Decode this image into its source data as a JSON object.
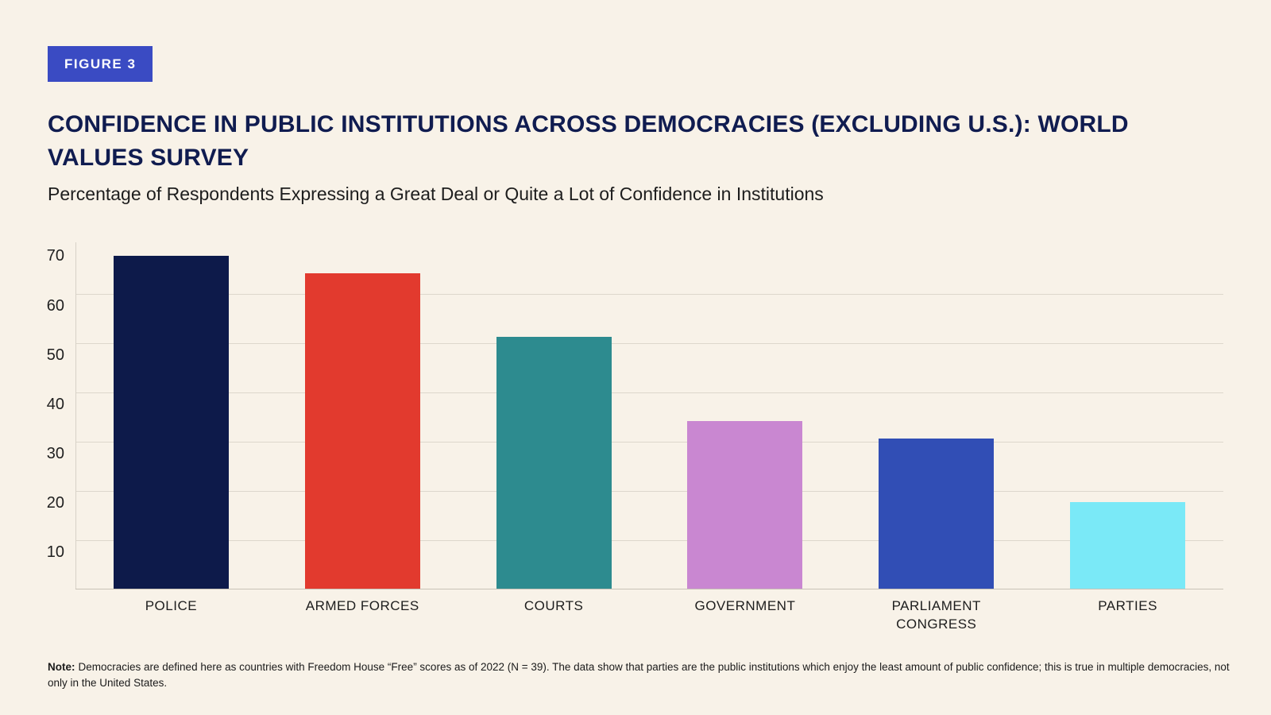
{
  "badge": {
    "label": "FIGURE 3",
    "bg_color": "#3a4bc3",
    "text_color": "#ffffff"
  },
  "colors": {
    "background": "#f8f2e8",
    "title": "#101c50",
    "body_text": "#1d1d1d",
    "gridline": "#ddd7cc",
    "axis_line": "#c8c2b7"
  },
  "chart_data": {
    "type": "bar",
    "title": "CONFIDENCE IN PUBLIC INSTITUTIONS ACROSS DEMOCRACIES (EXCLUDING U.S.): WORLD VALUES SURVEY",
    "subtitle": "Percentage of Respondents Expressing a Great Deal or Quite a Lot of Confidence in Institutions",
    "categories": [
      "POLICE",
      "ARMED FORCES",
      "COURTS",
      "GOVERNMENT",
      "PARLIAMENT\nCONGRESS",
      "PARTIES"
    ],
    "values": [
      67.5,
      64,
      51,
      34,
      30.5,
      17.5
    ],
    "bar_colors": [
      "#0d1a4a",
      "#e23a2e",
      "#2d8b8f",
      "#c987d1",
      "#314eb5",
      "#7ae9f7"
    ],
    "xlabel": "",
    "ylabel": "",
    "yticks": [
      10,
      20,
      30,
      40,
      50,
      60,
      70
    ],
    "ylim": [
      0,
      72
    ],
    "grid": true,
    "legend": false,
    "note": {
      "prefix": "Note:",
      "body": "Democracies are defined here as countries with Freedom House “Free” scores as of 2022 (N = 39). The data show that parties are the public institutions which enjoy the least amount of public confidence; this is true in multiple democracies, not only in the United States."
    }
  }
}
